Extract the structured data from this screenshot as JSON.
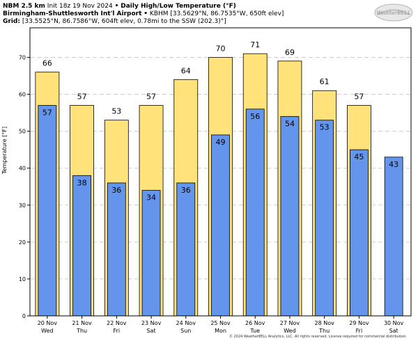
{
  "header": {
    "model": "NBM 2.5 km",
    "init": "Init 18z 19 Nov 2024",
    "bullet": "•",
    "product": "Daily High/Low Temperature (°F)",
    "station_name": "Birmingham-Shuttlesworth Int'l Airport",
    "station_info": "KBHM [33.5629°N, 86.7535°W, 650ft elev]",
    "grid_label": "Grid",
    "grid_info": "[33.5525°N, 86.7586°W, 604ft elev, 0.78mi to the SSW (202.3)°]"
  },
  "logo": {
    "text": "WeatherBELL"
  },
  "footer": "© 2024 WeatherBELL Analytics, LLC. All rights reserved. License required for commercial distribution.",
  "colors": {
    "high": "#ffe27a",
    "low": "#6495ed",
    "grid": "#cccccc"
  },
  "chart_data": {
    "type": "bar",
    "ylabel": "Temperature [°F]",
    "ylim": [
      0,
      78
    ],
    "yticks": [
      0,
      10,
      20,
      30,
      40,
      50,
      60,
      70
    ],
    "grid": true,
    "categories": [
      {
        "date": "20 Nov",
        "day": "Wed"
      },
      {
        "date": "21 Nov",
        "day": "Thu"
      },
      {
        "date": "22 Nov",
        "day": "Fri"
      },
      {
        "date": "23 Nov",
        "day": "Sat"
      },
      {
        "date": "24 Nov",
        "day": "Sun"
      },
      {
        "date": "25 Nov",
        "day": "Mon"
      },
      {
        "date": "26 Nov",
        "day": "Tue"
      },
      {
        "date": "27 Nov",
        "day": "Wed"
      },
      {
        "date": "28 Nov",
        "day": "Thu"
      },
      {
        "date": "29 Nov",
        "day": "Fri"
      },
      {
        "date": "30 Nov",
        "day": "Sat"
      }
    ],
    "series": [
      {
        "key": "high",
        "values": [
          66,
          57,
          53,
          57,
          64,
          70,
          71,
          69,
          61,
          57,
          null
        ],
        "labels": [
          "66",
          "57",
          "53",
          "57",
          "64",
          "70",
          "71",
          "69",
          "61",
          "57",
          null
        ]
      },
      {
        "key": "low",
        "values": [
          57,
          38,
          36,
          34,
          36,
          49,
          56,
          54,
          53,
          45,
          43
        ],
        "labels": [
          "57",
          "38",
          "36",
          "34",
          "36",
          "49",
          "56",
          "54",
          "53",
          "45",
          "43"
        ]
      }
    ]
  }
}
